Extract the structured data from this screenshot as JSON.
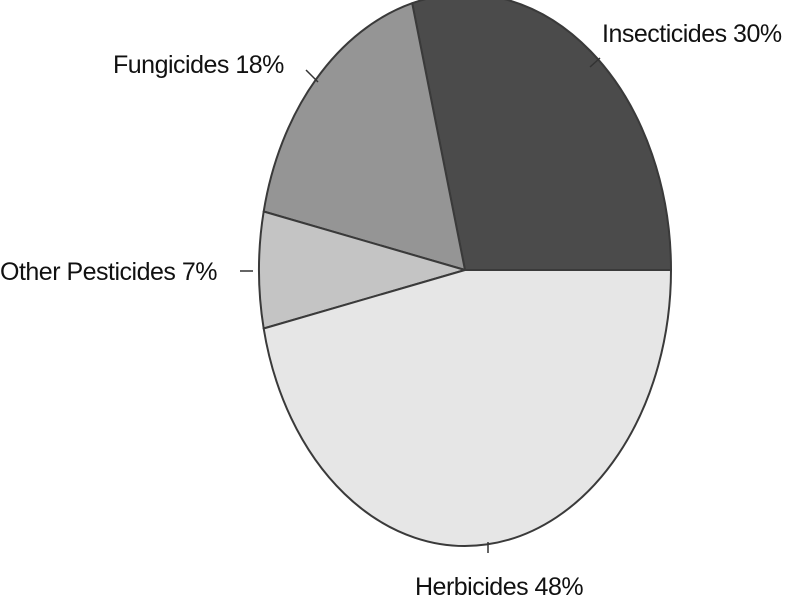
{
  "chart_data": {
    "type": "pie",
    "title": "",
    "slices": [
      {
        "name": "Insecticides",
        "value": 30,
        "label": "Insecticides 30%",
        "color": "#4b4b4b"
      },
      {
        "name": "Fungicides",
        "value": 18,
        "label": "Fungicides 18%",
        "color": "#959595"
      },
      {
        "name": "Other Pesticides",
        "value": 7,
        "label": "Other Pesticides 7%",
        "color": "#c4c4c4"
      },
      {
        "name": "Herbicides",
        "value": 48,
        "label": "Herbicides 48%",
        "color": "#e6e6e6"
      }
    ],
    "legend": "none",
    "direction": "counterclockwise",
    "start": "3 o'clock"
  }
}
